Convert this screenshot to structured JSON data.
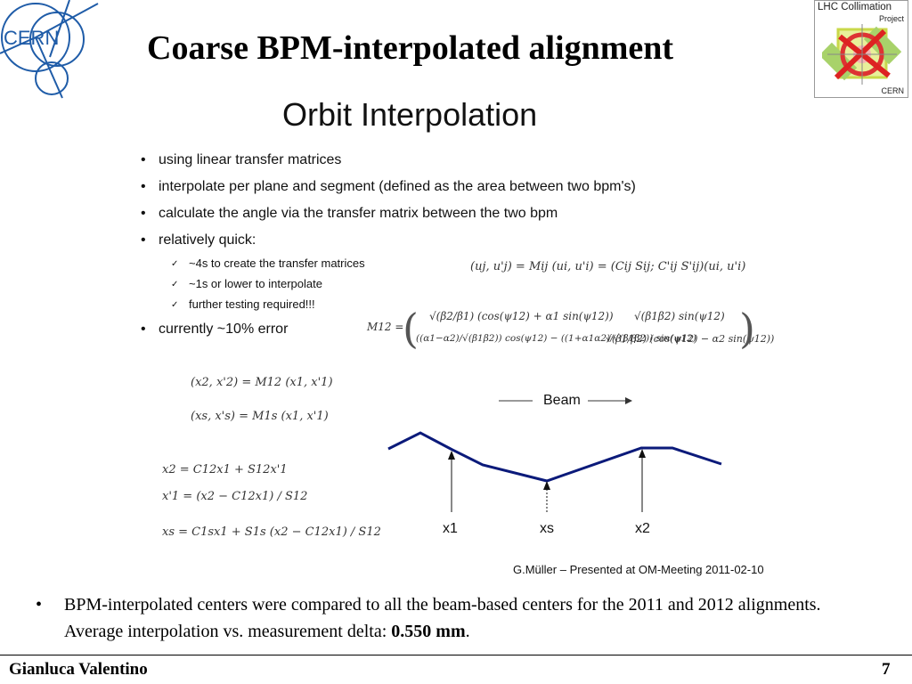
{
  "slide": {
    "title": "Coarse BPM-interpolated alignment",
    "author": "Gianluca Valentino",
    "page_number": "7"
  },
  "logos": {
    "cern_text": "CERN",
    "lhc_line1": "LHC Collimation",
    "lhc_line2": "Project",
    "lhc_line3": "CERN"
  },
  "figure": {
    "title": "Orbit Interpolation",
    "bullets": [
      "using linear transfer matrices",
      "interpolate per plane and segment (defined as the area between two bpm's)",
      "calculate the angle via the transfer matrix between the two bpm",
      "relatively quick:"
    ],
    "sub_bullets": [
      "~4s to create the transfer matrices",
      "~1s or lower to interpolate",
      "further testing required!!!"
    ],
    "last_bullet": "currently ~10% error",
    "equations": {
      "transfer": "(uj, u'j) = Mij (ui, u'i) = (Cij Sij; C'ij S'ij)(ui, u'i)",
      "m12_label": "M12 =",
      "m12_r1c1": "√(β2/β1) (cos(ψ12) + α1 sin(ψ12))",
      "m12_r1c2": "√(β1β2) sin(ψ12)",
      "m12_r2c1": "((α1−α2)/√(β1β2)) cos(ψ12) − ((1+α1α2)/√(β1β2)) sin(ψ12)",
      "m12_r2c2": "√(β1/β2) (cos(ψ12) − α2 sin(ψ12))",
      "x2_vec": "(x2, x'2) = M12 (x1, x'1)",
      "xs_vec": "(xs, x's) = M1s (x1, x'1)",
      "eq1": "x2 = C12x1 + S12x'1",
      "eq2": "x'1 = (x2 − C12x1) / S12",
      "eq3": "xs = C1sx1 + S1s (x2 − C12x1) / S12"
    },
    "beam_label": "Beam",
    "positions": [
      "x1",
      "xs",
      "x2"
    ],
    "credit": "G.Müller – Presented at OM-Meeting 2011-02-10",
    "orbit_color": "#0b1a7a"
  },
  "footer_bullet": {
    "text": "BPM-interpolated centers were compared to all the beam-based centers for the 2011 and 2012 alignments. Average interpolation vs. measurement delta: ",
    "value": "0.550 mm",
    "end": "."
  }
}
